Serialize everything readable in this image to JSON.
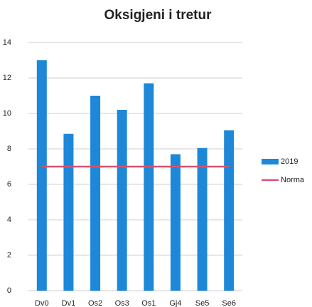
{
  "chart_data": {
    "type": "bar",
    "title": "Oksigjeni i tretur",
    "categories": [
      "Dv0",
      "Dv1",
      "Os2",
      "Os3",
      "Os1",
      "Gj4",
      "Se5",
      "Se6"
    ],
    "series": [
      {
        "name": "2019",
        "color": "#1e88d8",
        "values": [
          13,
          8.85,
          11,
          10.2,
          11.7,
          7.7,
          8.05,
          9.05
        ]
      },
      {
        "name": "Norma",
        "color": "#d9506e",
        "type": "line",
        "values": [
          7,
          7,
          7,
          7,
          7,
          7,
          7,
          7
        ]
      }
    ],
    "ylim": [
      0,
      14
    ],
    "yticks": [
      0,
      2,
      4,
      6,
      8,
      10,
      12,
      14
    ],
    "grid": true,
    "legend": "right"
  }
}
